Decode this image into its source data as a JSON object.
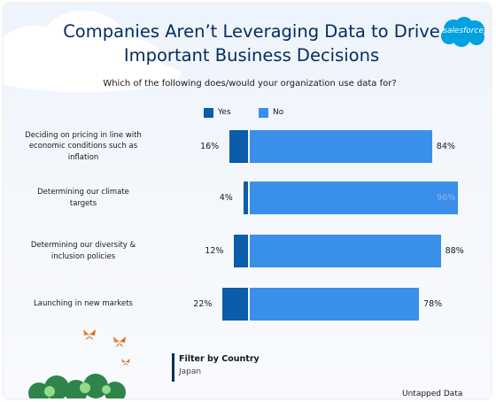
{
  "header": {
    "title_line1": "Companies Aren’t Leveraging Data to Drive",
    "title_line2": "Important Business Decisions",
    "subtitle": "Which of the following does/would your organization use data for?",
    "logo_text": "salesforce"
  },
  "colors": {
    "yes": "#0b5cab",
    "no": "#3a8fe8",
    "no_label_highlight": "#8ab6ec",
    "title": "#032d60"
  },
  "chart_data": {
    "type": "bar",
    "orientation": "horizontal",
    "stacked": "diverging",
    "categories": [
      "Deciding on pricing in line with economic conditions such as inflation",
      "Determining our climate targets",
      "Determining our diversity & inclusion policies",
      "Launching in new markets"
    ],
    "category_lines": [
      [
        "Deciding on pricing in line with",
        "economic conditions such as",
        "inflation"
      ],
      [
        "Determining our climate",
        "targets"
      ],
      [
        "Determining our diversity &",
        "inclusion policies"
      ],
      [
        "Launching in new markets"
      ]
    ],
    "series": [
      {
        "name": "Yes",
        "values": [
          16,
          4,
          12,
          22
        ],
        "labels": [
          "16%",
          "4%",
          "12%",
          "22%"
        ]
      },
      {
        "name": "No",
        "values": [
          84,
          96,
          88,
          78
        ],
        "labels": [
          "84%",
          "96%",
          "88%",
          "78%"
        ]
      }
    ],
    "unit": "%",
    "xlim": [
      0,
      100
    ],
    "grid": false,
    "legend_position": "top"
  },
  "filter": {
    "title": "Filter by Country",
    "value": "Japan"
  },
  "footer": {
    "credit": "Untapped Data"
  }
}
